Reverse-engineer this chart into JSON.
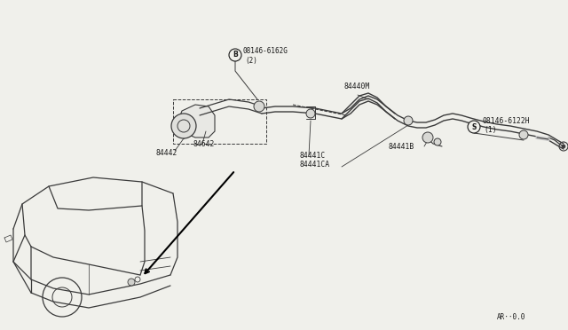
{
  "bg_color": "#f0f0eb",
  "line_color": "#3a3a3a",
  "text_color": "#1a1a1a",
  "fig_w": 6.4,
  "fig_h": 3.72,
  "dpi": 100,
  "labels": {
    "B_label": "B",
    "B_part": "08146-6162G",
    "B_qty": "(2)",
    "part_84642": "84642",
    "part_84442": "84442",
    "part_84441C": "84441C",
    "part_84441CA": "84441CA",
    "part_84440M": "84440M",
    "part_84441B": "84441B",
    "S_label": "S",
    "S_part": "08146-6122H",
    "S_qty": "(1)",
    "watermark": "AR··0.0"
  }
}
